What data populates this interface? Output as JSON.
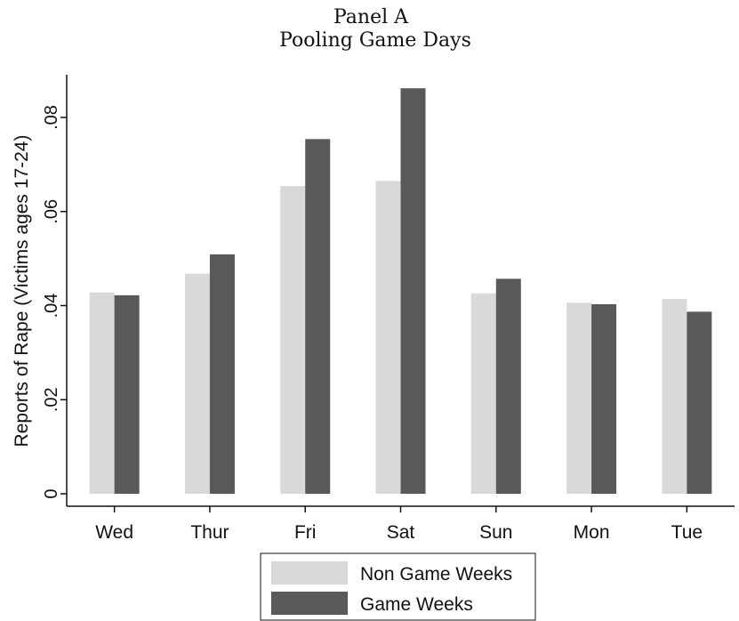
{
  "chart_data": {
    "type": "bar",
    "title": "Panel A",
    "subtitle": "Pooling Game Days",
    "ylabel": "Reports of Rape (Victims ages 17-24)",
    "xlabel": "",
    "categories": [
      "Wed",
      "Thur",
      "Fri",
      "Sat",
      "Sun",
      "Mon",
      "Tue"
    ],
    "ylim": [
      0,
      0.088
    ],
    "yticks": [
      0,
      0.02,
      0.04,
      0.06,
      0.08
    ],
    "ytick_labels": [
      "0",
      ".02",
      ".04",
      ".06",
      ".08"
    ],
    "grid": false,
    "legend_position": "bottom",
    "series": [
      {
        "name": "Non Game Weeks",
        "color": "#d9d9d9",
        "values": [
          0.0428,
          0.0468,
          0.0654,
          0.0665,
          0.0426,
          0.0406,
          0.0414
        ]
      },
      {
        "name": "Game Weeks",
        "color": "#595959",
        "values": [
          0.0422,
          0.0509,
          0.0754,
          0.0862,
          0.0457,
          0.0403,
          0.0387
        ]
      }
    ]
  }
}
